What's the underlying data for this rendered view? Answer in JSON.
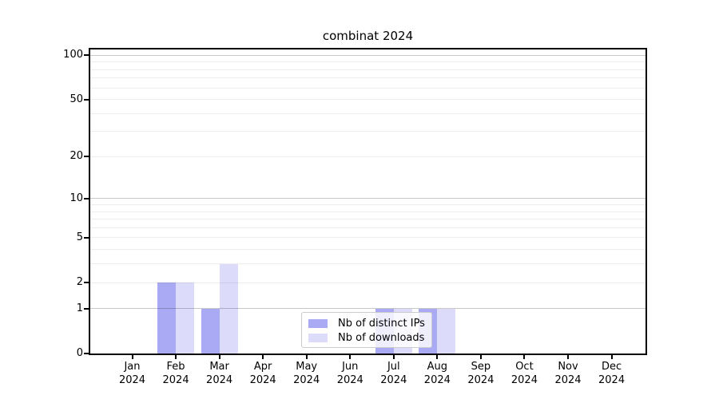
{
  "chart_data": {
    "type": "bar",
    "title": "combinat 2024",
    "year_label": "2024",
    "categories": [
      "Jan",
      "Feb",
      "Mar",
      "Apr",
      "May",
      "Jun",
      "Jul",
      "Aug",
      "Sep",
      "Oct",
      "Nov",
      "Dec"
    ],
    "series": [
      {
        "name": "Nb of distinct IPs",
        "color": "#aaaaf4",
        "values": [
          0,
          2,
          1,
          0,
          0,
          0,
          1,
          1,
          0,
          0,
          0,
          0
        ]
      },
      {
        "name": "Nb of downloads",
        "color": "#dcdcfa",
        "values": [
          0,
          2,
          3,
          0,
          0,
          0,
          1,
          1,
          0,
          0,
          0,
          0
        ]
      }
    ],
    "yscale": "log1p",
    "ylim": [
      0,
      114
    ],
    "y_tick_labels": [
      100,
      50,
      20,
      10,
      5,
      2,
      1,
      0
    ],
    "y_major_gridlines": [
      1,
      10,
      100
    ],
    "y_minor_gridlines": [
      2,
      3,
      4,
      5,
      6,
      7,
      8,
      9,
      20,
      30,
      40,
      50,
      60,
      70,
      80,
      90
    ],
    "grid": true,
    "legend_position": "lower center"
  }
}
